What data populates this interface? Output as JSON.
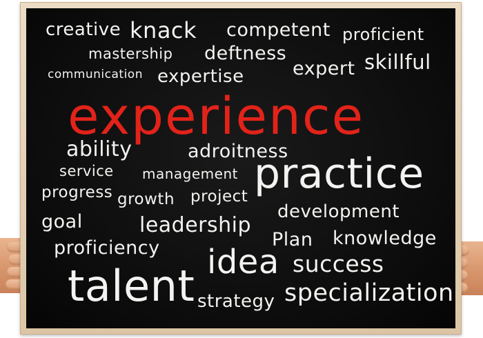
{
  "words": {
    "creative": "creative",
    "knack": "knack",
    "competent": "competent",
    "proficient": "proficient",
    "mastership": "mastership",
    "deftness": "deftness",
    "communication": "communication",
    "expertise": "expertise",
    "expert": "expert",
    "skillful": "skillful",
    "experience": "experience",
    "ability": "ability",
    "adroitness": "adroitness",
    "service": "service",
    "management": "management",
    "practice": "practice",
    "progress": "progress",
    "growth": "growth",
    "project": "project",
    "development": "development",
    "goal": "goal",
    "leadership": "leadership",
    "plan": "Plan",
    "knowledge": "knowledge",
    "proficiency": "proficiency",
    "idea": "idea",
    "success": "success",
    "talent": "talent",
    "strategy": "strategy",
    "specialization": "specialization"
  },
  "colors": {
    "chalk": "#f3f3f1",
    "accent": "#e2231a",
    "board": "#0c0c0c",
    "frame": "#e3cfb3"
  }
}
